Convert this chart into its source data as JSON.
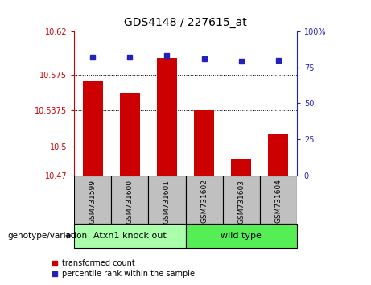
{
  "title": "GDS4148 / 227615_at",
  "samples": [
    "GSM731599",
    "GSM731600",
    "GSM731601",
    "GSM731602",
    "GSM731603",
    "GSM731604"
  ],
  "bar_values": [
    10.568,
    10.555,
    10.592,
    10.538,
    10.487,
    10.513
  ],
  "percentile_values": [
    82,
    82,
    83,
    81,
    79,
    80
  ],
  "ylim_left": [
    10.47,
    10.62
  ],
  "ylim_right": [
    0,
    100
  ],
  "yticks_left": [
    10.47,
    10.5,
    10.5375,
    10.575,
    10.62
  ],
  "yticks_right": [
    0,
    25,
    50,
    75,
    100
  ],
  "ytick_labels_left": [
    "10.47",
    "10.5",
    "10.5375",
    "10.575",
    "10.62"
  ],
  "ytick_labels_right": [
    "0",
    "25",
    "50",
    "75",
    "100%"
  ],
  "bar_color": "#cc0000",
  "dot_color": "#2222bb",
  "group1_label": "Atxn1 knock out",
  "group2_label": "wild type",
  "group1_color": "#aaffaa",
  "group2_color": "#55ee55",
  "genotype_label": "genotype/variation",
  "legend_bar_label": "transformed count",
  "legend_dot_label": "percentile rank within the sample",
  "tick_area_color": "#c0c0c0",
  "bar_width": 0.55,
  "fig_width": 4.61,
  "fig_height": 3.54,
  "dpi": 100
}
